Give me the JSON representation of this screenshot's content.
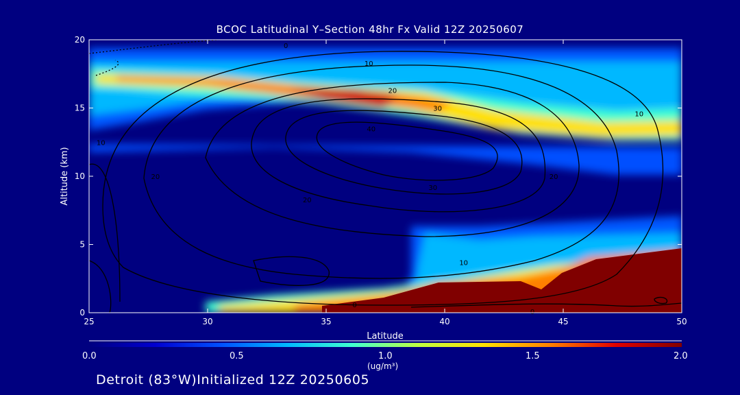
{
  "chart_data": {
    "type": "heatmap",
    "title": "BCOC Latitudinal Y–Section 48hr  Fx Valid 12Z 20250607",
    "xlabel": "Latitude",
    "ylabel": "Altitude (km)",
    "xlim": [
      25,
      50
    ],
    "ylim": [
      0,
      20
    ],
    "x_ticks": [
      "25",
      "30",
      "35",
      "40",
      "45",
      "50"
    ],
    "y_ticks": [
      "0",
      "5",
      "10",
      "15",
      "20"
    ],
    "colorbar": {
      "min": 0.0,
      "max": 2.0,
      "ticks": [
        "0.0",
        "0.5",
        "1.0",
        "1.5",
        "2.0"
      ],
      "unit_label": "(ug/m³)",
      "colormap": [
        "#000080",
        "#0000d0",
        "#0050ff",
        "#00b8ff",
        "#40ffd0",
        "#c0ff40",
        "#ffe000",
        "#ff8000",
        "#e00000",
        "#800000"
      ]
    },
    "contour_labels": [
      {
        "text": "0",
        "lat": 36.2,
        "alt": 0.6
      },
      {
        "text": "0",
        "lat": 43.7,
        "alt": 0.1
      },
      {
        "text": "0",
        "lat": 33.3,
        "alt": 19.6
      },
      {
        "text": "10",
        "lat": 36.8,
        "alt": 18.3
      },
      {
        "text": "10",
        "lat": 48.2,
        "alt": 14.6
      },
      {
        "text": "10",
        "lat": 25.5,
        "alt": 12.5
      },
      {
        "text": "10",
        "lat": 40.8,
        "alt": 3.7
      },
      {
        "text": "20",
        "lat": 37.8,
        "alt": 16.3
      },
      {
        "text": "20",
        "lat": 27.8,
        "alt": 10.0
      },
      {
        "text": "20",
        "lat": 44.6,
        "alt": 10.0
      },
      {
        "text": "20",
        "lat": 34.2,
        "alt": 8.3
      },
      {
        "text": "30",
        "lat": 39.7,
        "alt": 15.0
      },
      {
        "text": "30",
        "lat": 39.5,
        "alt": 9.2
      },
      {
        "text": "40",
        "lat": 36.9,
        "alt": 13.5
      }
    ]
  },
  "footer_text": "Detroit (83°W)Initialized 12Z 20250605"
}
